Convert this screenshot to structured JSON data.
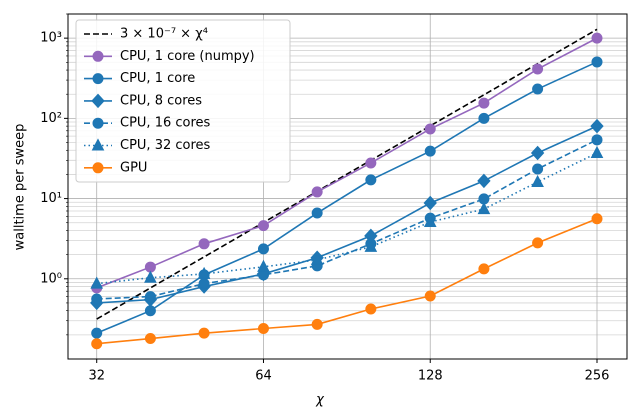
{
  "chart_data": {
    "type": "line",
    "xlabel": "χ",
    "ylabel": "walltime per sweep",
    "x": [
      32,
      40,
      50,
      64,
      80,
      100,
      128,
      160,
      200,
      256
    ],
    "xscale": "log",
    "yscale": "log",
    "xlim": [
      28.4,
      290
    ],
    "ylim": [
      0.1,
      2000
    ],
    "xticks": [
      32,
      64,
      128,
      256
    ],
    "yticks": [
      {
        "value": 1,
        "label": "10⁰"
      },
      {
        "value": 10,
        "label": "10¹"
      },
      {
        "value": 100,
        "label": "10²"
      },
      {
        "value": 1000,
        "label": "10³"
      }
    ],
    "yminorticks": [
      0.2,
      0.3,
      0.4,
      0.5,
      0.6,
      0.7,
      0.8,
      0.9,
      2,
      3,
      4,
      5,
      6,
      7,
      8,
      9,
      20,
      30,
      40,
      50,
      60,
      70,
      80,
      90,
      200,
      300,
      400,
      500,
      600,
      700,
      800,
      900,
      2000
    ],
    "grid": true,
    "legend": "upper left",
    "series": [
      {
        "name": "3 × 10⁻⁷ × χ⁴",
        "color": "#000000",
        "linestyle": "dashed",
        "marker": "none",
        "values": [
          0.315,
          0.768,
          1.875,
          5.03,
          12.29,
          30,
          80.5,
          196.6,
          480,
          1288.5
        ]
      },
      {
        "name": "CPU, 1 core (numpy)",
        "color": "#9467bd",
        "linestyle": "solid",
        "marker": "circle",
        "values": [
          0.77,
          1.4,
          2.73,
          4.6,
          12.1,
          27.8,
          73.8,
          155,
          412,
          1000
        ]
      },
      {
        "name": "CPU, 1 core",
        "color": "#1f77b4",
        "linestyle": "solid",
        "marker": "circle",
        "values": [
          0.21,
          0.4,
          1.12,
          2.36,
          6.6,
          17.1,
          39,
          100,
          232,
          505
        ]
      },
      {
        "name": "CPU, 8 cores",
        "color": "#1f77b4",
        "linestyle": "solid",
        "marker": "diamond",
        "values": [
          0.5,
          0.55,
          0.8,
          1.15,
          1.83,
          3.43,
          8.8,
          16.6,
          37,
          80
        ]
      },
      {
        "name": "CPU, 16 cores",
        "color": "#1f77b4",
        "linestyle": "dashed",
        "marker": "circle",
        "values": [
          0.56,
          0.6,
          0.87,
          1.12,
          1.45,
          2.73,
          5.7,
          9.9,
          23.4,
          54
        ]
      },
      {
        "name": "CPU, 32 cores",
        "color": "#1f77b4",
        "linestyle": "dotted",
        "marker": "triangle",
        "values": [
          0.87,
          1.03,
          1.15,
          1.41,
          1.72,
          2.5,
          5.1,
          7.4,
          16.1,
          37
        ]
      },
      {
        "name": "GPU",
        "color": "#ff7f0e",
        "linestyle": "solid",
        "marker": "circle",
        "values": [
          0.155,
          0.18,
          0.21,
          0.24,
          0.27,
          0.42,
          0.61,
          1.33,
          2.8,
          5.6
        ]
      }
    ]
  }
}
